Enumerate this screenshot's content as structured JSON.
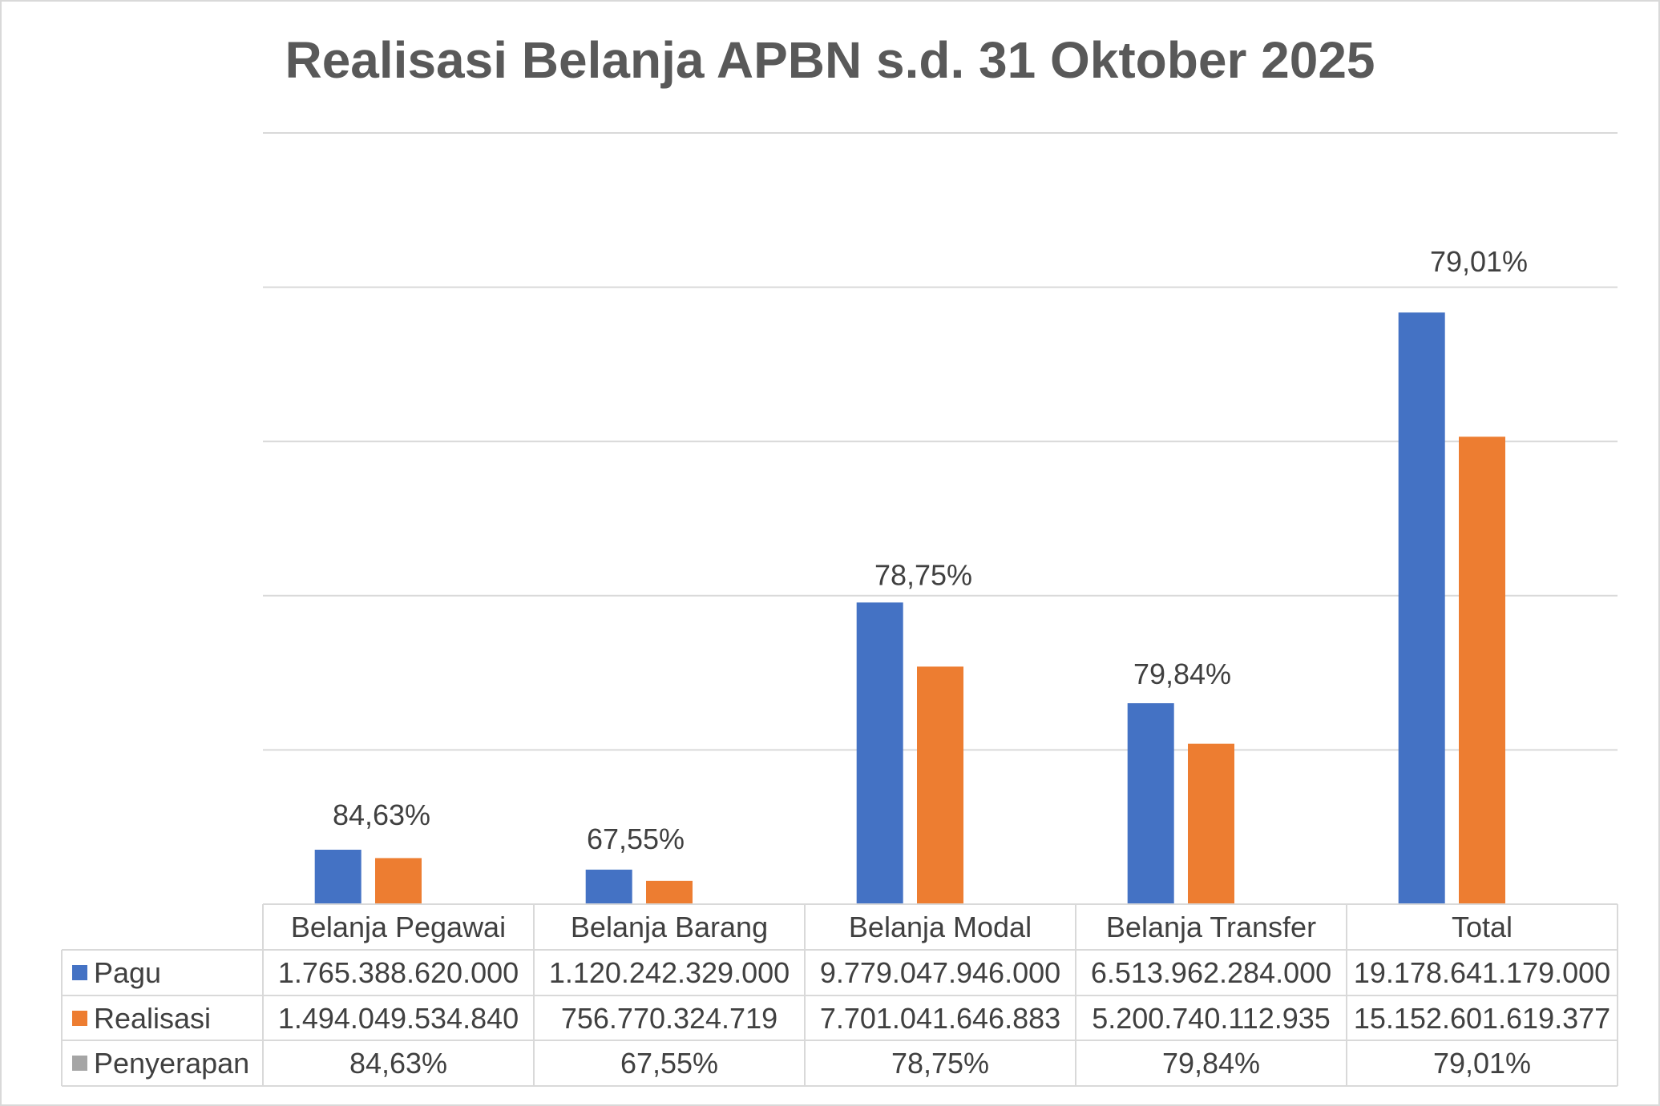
{
  "chart_data": {
    "type": "bar",
    "title": "Realisasi Belanja APBN s.d. 31 Oktober 2025",
    "categories": [
      "Belanja Pegawai",
      "Belanja Barang",
      "Belanja Modal",
      "Belanja Transfer",
      "Total"
    ],
    "series": [
      {
        "name": "Pagu",
        "color": "#4472C4",
        "values": [
          1765388620000,
          1120242329000,
          9779047946000,
          6513962284000,
          19178641179000
        ],
        "labels": [
          "1.765.388.620.000",
          "1.120.242.329.000",
          "9.779.047.946.000",
          "6.513.962.284.000",
          "19.178.641.179.000"
        ]
      },
      {
        "name": "Realisasi",
        "color": "#ED7D31",
        "values": [
          1494049534840,
          756770324719,
          7701041646883,
          5200740112935,
          15152601619377
        ],
        "labels": [
          "1.494.049.534.840",
          "756.770.324.719",
          "7.701.041.646.883",
          "5.200.740.112.935",
          "15.152.601.619.377"
        ]
      },
      {
        "name": "Penyerapan",
        "color": "#A5A5A5",
        "values": [
          84.63,
          67.55,
          78.75,
          79.84,
          79.01
        ],
        "labels": [
          "84,63%",
          "67,55%",
          "78,75%",
          "79,84%",
          "79,01%"
        ]
      }
    ],
    "ylim": [
      0,
      25000000000000
    ],
    "grid": true,
    "legend": "bottom",
    "data_table": true
  }
}
